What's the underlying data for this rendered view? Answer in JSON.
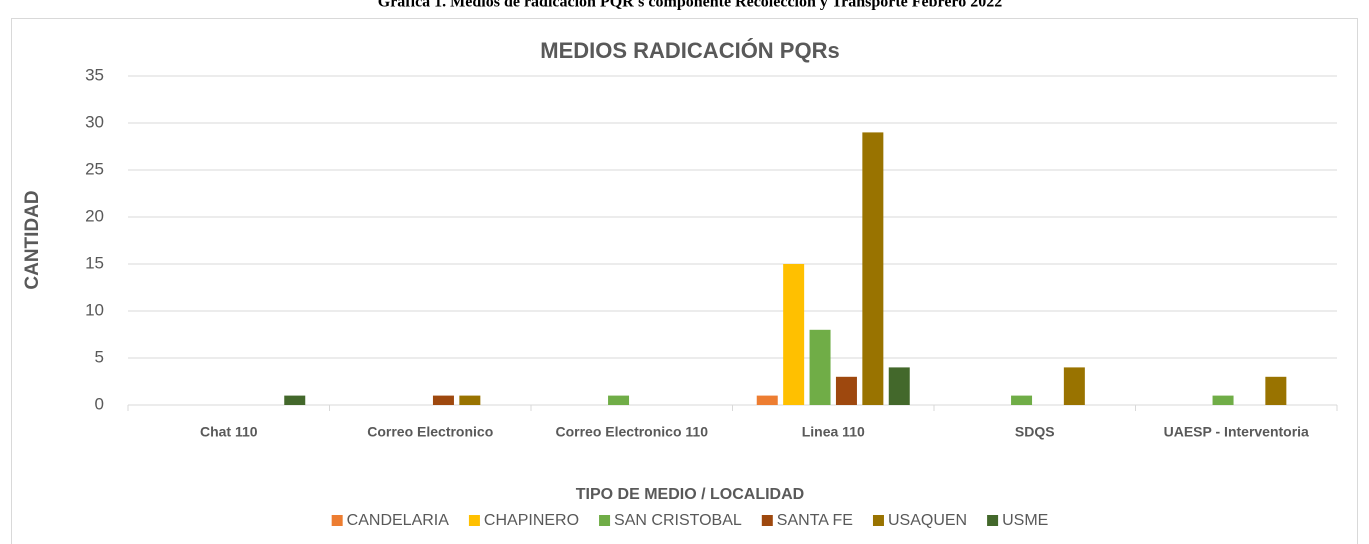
{
  "caption": "Gráfica 1. Medios de radicación PQR's componente Recolección y Transporte Febrero 2022",
  "chart_data": {
    "type": "bar",
    "title": "MEDIOS RADICACIÓN PQRs",
    "x_label": "TIPO DE MEDIO / LOCALIDAD",
    "y_label": "CANTIDAD",
    "categories": [
      "Chat 110",
      "Correo Electronico",
      "Correo Electronico 110",
      "Linea 110",
      "SDQS",
      "UAESP - Interventoria"
    ],
    "series": [
      {
        "name": "CANDELARIA",
        "color": "#ed7d31",
        "values": [
          null,
          null,
          null,
          1,
          null,
          null
        ]
      },
      {
        "name": "CHAPINERO",
        "color": "#ffc000",
        "values": [
          null,
          null,
          null,
          15,
          null,
          null
        ]
      },
      {
        "name": "SAN CRISTOBAL",
        "color": "#70ad47",
        "values": [
          null,
          null,
          1,
          8,
          1,
          1
        ]
      },
      {
        "name": "SANTA FE",
        "color": "#9e480e",
        "values": [
          null,
          1,
          null,
          3,
          null,
          null
        ]
      },
      {
        "name": "USAQUEN",
        "color": "#997300",
        "values": [
          null,
          1,
          null,
          29,
          4,
          3
        ]
      },
      {
        "name": "USME",
        "color": "#43682b",
        "values": [
          1,
          null,
          null,
          4,
          null,
          null
        ]
      }
    ],
    "ylim": [
      0,
      35
    ],
    "yticks": [
      0,
      5,
      10,
      15,
      20,
      25,
      30,
      35
    ],
    "grid": true,
    "legend": "bottom"
  }
}
